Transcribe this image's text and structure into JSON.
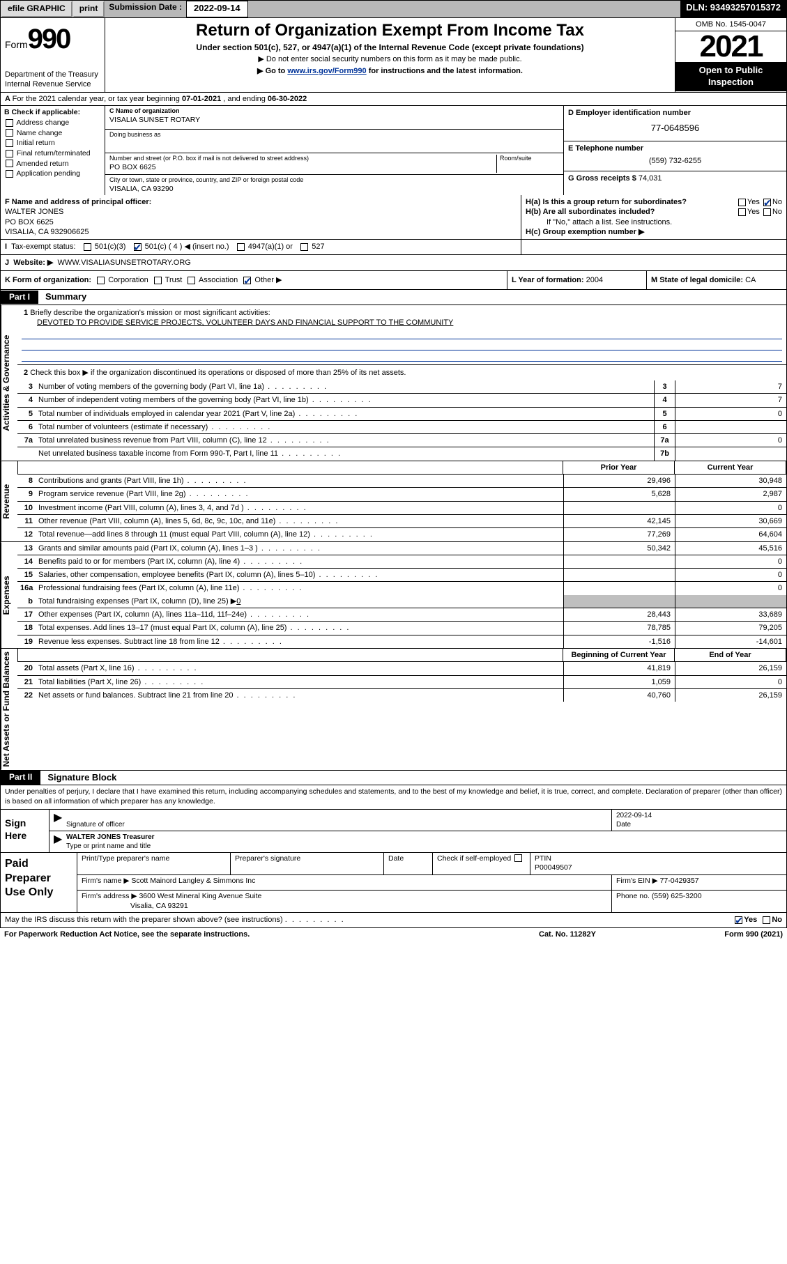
{
  "topbar": {
    "efile": "efile GRAPHIC",
    "print": "print",
    "subm_lbl": "Submission Date :",
    "subm_date": "2022-09-14",
    "dln": "DLN: 93493257015372"
  },
  "header": {
    "form_word": "Form",
    "form_num": "990",
    "dept": "Department of the Treasury",
    "irs": "Internal Revenue Service",
    "title": "Return of Organization Exempt From Income Tax",
    "sub": "Under section 501(c), 527, or 4947(a)(1) of the Internal Revenue Code (except private foundations)",
    "note1": "▶ Do not enter social security numbers on this form as it may be made public.",
    "note2_a": "▶ Go to ",
    "note2_link": "www.irs.gov/Form990",
    "note2_b": " for instructions and the latest information.",
    "omb": "OMB No. 1545-0047",
    "year": "2021",
    "inspect": "Open to Public Inspection"
  },
  "A": {
    "text_a": "For the 2021 calendar year, or tax year beginning ",
    "beg": "07-01-2021",
    "text_b": " , and ending ",
    "end": "06-30-2022"
  },
  "B": {
    "hdr": "B Check if applicable:",
    "opts": [
      "Address change",
      "Name change",
      "Initial return",
      "Final return/terminated",
      "Amended return",
      "Application pending"
    ]
  },
  "C": {
    "lbl_name": "C Name of organization",
    "org": "VISALIA SUNSET ROTARY",
    "dba_lbl": "Doing business as",
    "addr_lbl": "Number and street (or P.O. box if mail is not delivered to street address)",
    "room_lbl": "Room/suite",
    "addr": "PO BOX 6625",
    "city_lbl": "City or town, state or province, country, and ZIP or foreign postal code",
    "city": "VISALIA, CA  93290"
  },
  "D": {
    "lbl": "D Employer identification number",
    "val": "77-0648596"
  },
  "E": {
    "lbl": "E Telephone number",
    "val": "(559) 732-6255"
  },
  "G": {
    "lbl": "G Gross receipts $",
    "val": "74,031"
  },
  "F": {
    "lbl": "F Name and address of principal officer:",
    "name": "WALTER JONES",
    "addr1": "PO BOX 6625",
    "addr2": "VISALIA, CA  932906625"
  },
  "H": {
    "a": "H(a)  Is this a group return for subordinates?",
    "a_yes": "Yes",
    "a_no": "No",
    "b": "H(b)  Are all subordinates included?",
    "b_yes": "Yes",
    "b_no": "No",
    "b_note": "If \"No,\" attach a list. See instructions.",
    "c": "H(c)  Group exemption number ▶"
  },
  "I": {
    "lbl": "Tax-exempt status:",
    "o1": "501(c)(3)",
    "o2": "501(c) ( 4 ) ◀ (insert no.)",
    "o3": "4947(a)(1) or",
    "o4": "527"
  },
  "J": {
    "lbl": "Website: ▶",
    "val": "WWW.VISALIASUNSETROTARY.ORG"
  },
  "K": {
    "lbl": "K Form of organization:",
    "opts": [
      "Corporation",
      "Trust",
      "Association",
      "Other ▶"
    ]
  },
  "L": {
    "lbl": "L Year of formation:",
    "val": "2004"
  },
  "M": {
    "lbl": "M State of legal domicile:",
    "val": "CA"
  },
  "partI": {
    "tab": "Part I",
    "title": "Summary",
    "sideA": "Activities & Governance",
    "sideR": "Revenue",
    "sideE": "Expenses",
    "sideN": "Net Assets or Fund Balances",
    "l1": "Briefly describe the organization's mission or most significant activities:",
    "mission": "DEVOTED TO PROVIDE SERVICE PROJECTS, VOLUNTEER DAYS AND FINANCIAL SUPPORT TO THE COMMUNITY",
    "l2": "Check this box ▶        if the organization discontinued its operations or disposed of more than 25% of its net assets.",
    "rows_gov": [
      {
        "n": "3",
        "d": "Number of voting members of the governing body (Part VI, line 1a)",
        "b": "3",
        "v": "7"
      },
      {
        "n": "4",
        "d": "Number of independent voting members of the governing body (Part VI, line 1b)",
        "b": "4",
        "v": "7"
      },
      {
        "n": "5",
        "d": "Total number of individuals employed in calendar year 2021 (Part V, line 2a)",
        "b": "5",
        "v": "0"
      },
      {
        "n": "6",
        "d": "Total number of volunteers (estimate if necessary)",
        "b": "6",
        "v": ""
      },
      {
        "n": "7a",
        "d": "Total unrelated business revenue from Part VIII, column (C), line 12",
        "b": "7a",
        "v": "0"
      },
      {
        "n": "",
        "d": "Net unrelated business taxable income from Form 990-T, Part I, line 11",
        "b": "7b",
        "v": ""
      }
    ],
    "hdr_prior": "Prior Year",
    "hdr_curr": "Current Year",
    "hdr_beg": "Beginning of Current Year",
    "hdr_end": "End of Year",
    "rows_rev": [
      {
        "n": "8",
        "d": "Contributions and grants (Part VIII, line 1h)",
        "p": "29,496",
        "c": "30,948"
      },
      {
        "n": "9",
        "d": "Program service revenue (Part VIII, line 2g)",
        "p": "5,628",
        "c": "2,987"
      },
      {
        "n": "10",
        "d": "Investment income (Part VIII, column (A), lines 3, 4, and 7d )",
        "p": "",
        "c": "0"
      },
      {
        "n": "11",
        "d": "Other revenue (Part VIII, column (A), lines 5, 6d, 8c, 9c, 10c, and 11e)",
        "p": "42,145",
        "c": "30,669"
      },
      {
        "n": "12",
        "d": "Total revenue—add lines 8 through 11 (must equal Part VIII, column (A), line 12)",
        "p": "77,269",
        "c": "64,604"
      }
    ],
    "rows_exp": [
      {
        "n": "13",
        "d": "Grants and similar amounts paid (Part IX, column (A), lines 1–3 )",
        "p": "50,342",
        "c": "45,516"
      },
      {
        "n": "14",
        "d": "Benefits paid to or for members (Part IX, column (A), line 4)",
        "p": "",
        "c": "0"
      },
      {
        "n": "15",
        "d": "Salaries, other compensation, employee benefits (Part IX, column (A), lines 5–10)",
        "p": "",
        "c": "0"
      },
      {
        "n": "16a",
        "d": "Professional fundraising fees (Part IX, column (A), line 11e)",
        "p": "",
        "c": "0"
      }
    ],
    "l16b_a": "Total fundraising expenses (Part IX, column (D), line 25) ▶",
    "l16b_v": "0",
    "rows_exp2": [
      {
        "n": "17",
        "d": "Other expenses (Part IX, column (A), lines 11a–11d, 11f–24e)",
        "p": "28,443",
        "c": "33,689"
      },
      {
        "n": "18",
        "d": "Total expenses. Add lines 13–17 (must equal Part IX, column (A), line 25)",
        "p": "78,785",
        "c": "79,205"
      },
      {
        "n": "19",
        "d": "Revenue less expenses. Subtract line 18 from line 12",
        "p": "-1,516",
        "c": "-14,601"
      }
    ],
    "rows_net": [
      {
        "n": "20",
        "d": "Total assets (Part X, line 16)",
        "p": "41,819",
        "c": "26,159"
      },
      {
        "n": "21",
        "d": "Total liabilities (Part X, line 26)",
        "p": "1,059",
        "c": "0"
      },
      {
        "n": "22",
        "d": "Net assets or fund balances. Subtract line 21 from line 20",
        "p": "40,760",
        "c": "26,159"
      }
    ]
  },
  "partII": {
    "tab": "Part II",
    "title": "Signature Block",
    "jurat": "Under penalties of perjury, I declare that I have examined this return, including accompanying schedules and statements, and to the best of my knowledge and belief, it is true, correct, and complete. Declaration of preparer (other than officer) is based on all information of which preparer has any knowledge.",
    "sign_here": "Sign Here",
    "sig_officer": "Signature of officer",
    "sig_date_lbl": "Date",
    "sig_date": "2022-09-14",
    "officer": "WALTER JONES Treasurer",
    "type_name": "Type or print name and title",
    "paid_lbl": "Paid Preparer Use Only",
    "prep_name_lbl": "Print/Type preparer's name",
    "prep_sig_lbl": "Preparer's signature",
    "date_lbl": "Date",
    "check_lbl": "Check         if self-employed",
    "ptin_lbl": "PTIN",
    "ptin": "P00049507",
    "firm_name_lbl": "Firm's name    ▶",
    "firm_name": "Scott Mainord Langley & Simmons Inc",
    "firm_ein_lbl": "Firm's EIN ▶",
    "firm_ein": "77-0429357",
    "firm_addr_lbl": "Firm's address ▶",
    "firm_addr1": "3600 West Mineral King Avenue Suite",
    "firm_addr2": "Visalia, CA  93291",
    "phone_lbl": "Phone no.",
    "phone": "(559) 625-3200"
  },
  "footer": {
    "discuss": "May the IRS discuss this return with the preparer shown above? (see instructions)",
    "yes": "Yes",
    "no": "No",
    "pra": "For Paperwork Reduction Act Notice, see the separate instructions.",
    "cat": "Cat. No. 11282Y",
    "form": "Form 990 (2021)"
  },
  "colors": {
    "topbar_bg": "#b8b8b8",
    "link": "#003399",
    "grey_cell": "#bfbfbf"
  }
}
